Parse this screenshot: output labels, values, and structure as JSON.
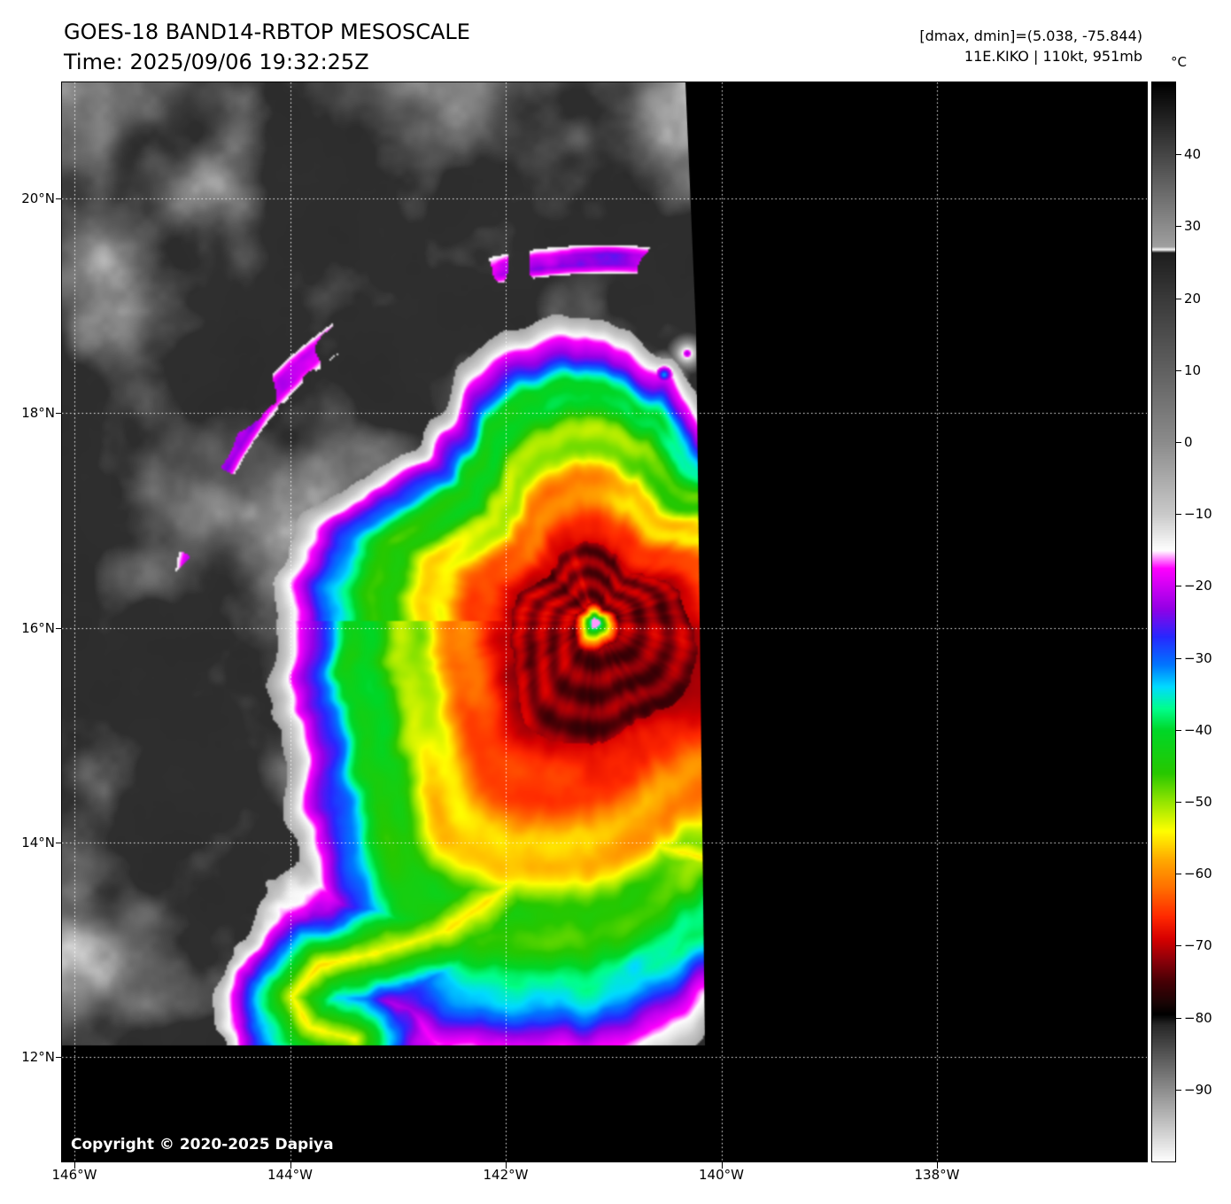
{
  "header": {
    "title": "GOES-18 BAND14-RBTOP MESOSCALE",
    "time": "Time: 2025/09/06 19:32:25Z",
    "range_readout": "[dmax, dmin]=(5.038, -75.844)",
    "storm_readout": "11E.KIKO | 110kt, 951mb"
  },
  "storm": {
    "designation": "11E",
    "name": "KIKO",
    "intensity": "110kt",
    "pressure": "951mb",
    "dmax": 5.038,
    "dmin": -75.844
  },
  "axes": {
    "lat_labels": [
      "20°N",
      "18°N",
      "16°N",
      "14°N",
      "12°N"
    ],
    "lon_labels": [
      "146°W",
      "144°W",
      "142°W",
      "140°W",
      "138°W"
    ]
  },
  "colorbar": {
    "unit": "°C",
    "tick_labels": [
      "40",
      "30",
      "20",
      "10",
      "0",
      "−10",
      "−20",
      "−30",
      "−40",
      "−50",
      "−60",
      "−70",
      "−80",
      "−90"
    ],
    "tick_values": [
      40,
      30,
      20,
      10,
      0,
      -10,
      -20,
      -30,
      -40,
      -50,
      -60,
      -70,
      -80,
      -90
    ],
    "scale_top_c": 50,
    "scale_bottom_c": -100,
    "colormap_stops": [
      [
        50,
        [
          0,
          0,
          0
        ]
      ],
      [
        27.2,
        [
          160,
          160,
          160
        ]
      ],
      [
        26.8,
        [
          255,
          255,
          255
        ]
      ],
      [
        26.4,
        [
          30,
          30,
          30
        ]
      ],
      [
        20,
        [
          58,
          58,
          58
        ]
      ],
      [
        10,
        [
          97,
          97,
          97
        ]
      ],
      [
        0,
        [
          140,
          140,
          140
        ]
      ],
      [
        -10,
        [
          202,
          202,
          202
        ]
      ],
      [
        -15,
        [
          255,
          255,
          255
        ]
      ],
      [
        -17.5,
        [
          255,
          0,
          255
        ]
      ],
      [
        -23,
        [
          150,
          0,
          230
        ]
      ],
      [
        -27,
        [
          40,
          40,
          255
        ]
      ],
      [
        -31,
        [
          0,
          120,
          255
        ]
      ],
      [
        -34,
        [
          0,
          220,
          255
        ]
      ],
      [
        -37,
        [
          0,
          255,
          140
        ]
      ],
      [
        -40,
        [
          0,
          215,
          40
        ]
      ],
      [
        -46,
        [
          40,
          200,
          0
        ]
      ],
      [
        -50,
        [
          150,
          230,
          0
        ]
      ],
      [
        -54,
        [
          255,
          255,
          0
        ]
      ],
      [
        -58,
        [
          255,
          170,
          0
        ]
      ],
      [
        -62,
        [
          255,
          110,
          0
        ]
      ],
      [
        -66,
        [
          255,
          40,
          0
        ]
      ],
      [
        -69,
        [
          215,
          0,
          0
        ]
      ],
      [
        -72,
        [
          140,
          0,
          10
        ]
      ],
      [
        -75,
        [
          70,
          0,
          5
        ]
      ],
      [
        -78,
        [
          25,
          5,
          5
        ]
      ],
      [
        -79.5,
        [
          0,
          0,
          0
        ]
      ],
      [
        -81,
        [
          40,
          40,
          40
        ]
      ],
      [
        -100,
        [
          255,
          255,
          255
        ]
      ]
    ]
  },
  "map": {
    "copyright": "Copyright © 2020-2025 Dapiya"
  }
}
